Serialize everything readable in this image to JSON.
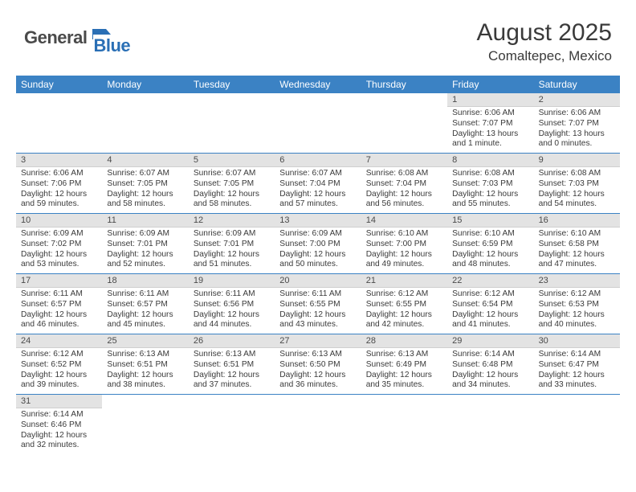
{
  "logo": {
    "part1": "General",
    "part2": "Blue"
  },
  "title": {
    "month": "August 2025",
    "location": "Comaltepec, Mexico"
  },
  "colors": {
    "header_bar": "#3b82c4",
    "daynum_bg": "#e3e3e3",
    "week_divider": "#3b82c4",
    "text": "#3a3a3a",
    "logo_gray": "#4a4a4a",
    "logo_blue": "#2a6fb5"
  },
  "weekdays": [
    "Sunday",
    "Monday",
    "Tuesday",
    "Wednesday",
    "Thursday",
    "Friday",
    "Saturday"
  ],
  "weeks": [
    [
      null,
      null,
      null,
      null,
      null,
      {
        "n": "1",
        "sr": "6:06 AM",
        "ss": "7:07 PM",
        "dl": "13 hours and 1 minute."
      },
      {
        "n": "2",
        "sr": "6:06 AM",
        "ss": "7:07 PM",
        "dl": "13 hours and 0 minutes."
      }
    ],
    [
      {
        "n": "3",
        "sr": "6:06 AM",
        "ss": "7:06 PM",
        "dl": "12 hours and 59 minutes."
      },
      {
        "n": "4",
        "sr": "6:07 AM",
        "ss": "7:05 PM",
        "dl": "12 hours and 58 minutes."
      },
      {
        "n": "5",
        "sr": "6:07 AM",
        "ss": "7:05 PM",
        "dl": "12 hours and 58 minutes."
      },
      {
        "n": "6",
        "sr": "6:07 AM",
        "ss": "7:04 PM",
        "dl": "12 hours and 57 minutes."
      },
      {
        "n": "7",
        "sr": "6:08 AM",
        "ss": "7:04 PM",
        "dl": "12 hours and 56 minutes."
      },
      {
        "n": "8",
        "sr": "6:08 AM",
        "ss": "7:03 PM",
        "dl": "12 hours and 55 minutes."
      },
      {
        "n": "9",
        "sr": "6:08 AM",
        "ss": "7:03 PM",
        "dl": "12 hours and 54 minutes."
      }
    ],
    [
      {
        "n": "10",
        "sr": "6:09 AM",
        "ss": "7:02 PM",
        "dl": "12 hours and 53 minutes."
      },
      {
        "n": "11",
        "sr": "6:09 AM",
        "ss": "7:01 PM",
        "dl": "12 hours and 52 minutes."
      },
      {
        "n": "12",
        "sr": "6:09 AM",
        "ss": "7:01 PM",
        "dl": "12 hours and 51 minutes."
      },
      {
        "n": "13",
        "sr": "6:09 AM",
        "ss": "7:00 PM",
        "dl": "12 hours and 50 minutes."
      },
      {
        "n": "14",
        "sr": "6:10 AM",
        "ss": "7:00 PM",
        "dl": "12 hours and 49 minutes."
      },
      {
        "n": "15",
        "sr": "6:10 AM",
        "ss": "6:59 PM",
        "dl": "12 hours and 48 minutes."
      },
      {
        "n": "16",
        "sr": "6:10 AM",
        "ss": "6:58 PM",
        "dl": "12 hours and 47 minutes."
      }
    ],
    [
      {
        "n": "17",
        "sr": "6:11 AM",
        "ss": "6:57 PM",
        "dl": "12 hours and 46 minutes."
      },
      {
        "n": "18",
        "sr": "6:11 AM",
        "ss": "6:57 PM",
        "dl": "12 hours and 45 minutes."
      },
      {
        "n": "19",
        "sr": "6:11 AM",
        "ss": "6:56 PM",
        "dl": "12 hours and 44 minutes."
      },
      {
        "n": "20",
        "sr": "6:11 AM",
        "ss": "6:55 PM",
        "dl": "12 hours and 43 minutes."
      },
      {
        "n": "21",
        "sr": "6:12 AM",
        "ss": "6:55 PM",
        "dl": "12 hours and 42 minutes."
      },
      {
        "n": "22",
        "sr": "6:12 AM",
        "ss": "6:54 PM",
        "dl": "12 hours and 41 minutes."
      },
      {
        "n": "23",
        "sr": "6:12 AM",
        "ss": "6:53 PM",
        "dl": "12 hours and 40 minutes."
      }
    ],
    [
      {
        "n": "24",
        "sr": "6:12 AM",
        "ss": "6:52 PM",
        "dl": "12 hours and 39 minutes."
      },
      {
        "n": "25",
        "sr": "6:13 AM",
        "ss": "6:51 PM",
        "dl": "12 hours and 38 minutes."
      },
      {
        "n": "26",
        "sr": "6:13 AM",
        "ss": "6:51 PM",
        "dl": "12 hours and 37 minutes."
      },
      {
        "n": "27",
        "sr": "6:13 AM",
        "ss": "6:50 PM",
        "dl": "12 hours and 36 minutes."
      },
      {
        "n": "28",
        "sr": "6:13 AM",
        "ss": "6:49 PM",
        "dl": "12 hours and 35 minutes."
      },
      {
        "n": "29",
        "sr": "6:14 AM",
        "ss": "6:48 PM",
        "dl": "12 hours and 34 minutes."
      },
      {
        "n": "30",
        "sr": "6:14 AM",
        "ss": "6:47 PM",
        "dl": "12 hours and 33 minutes."
      }
    ],
    [
      {
        "n": "31",
        "sr": "6:14 AM",
        "ss": "6:46 PM",
        "dl": "12 hours and 32 minutes."
      },
      null,
      null,
      null,
      null,
      null,
      null
    ]
  ]
}
